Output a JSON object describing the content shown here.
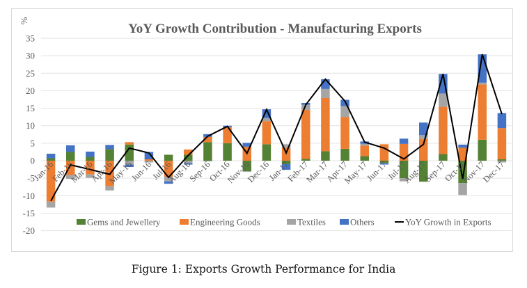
{
  "caption": "Figure 1: Exports Growth Performance for India",
  "chart_data": {
    "type": "bar",
    "subtype": "stacked bar with line overlay",
    "title": "YoY Growth Contribution - Manufacturing Exports",
    "ylabel": "%",
    "xlabel": "",
    "ylim": [
      -20,
      35
    ],
    "yticks": [
      -20,
      -15,
      -10,
      -5,
      0,
      5,
      10,
      15,
      20,
      25,
      30,
      35
    ],
    "ytick_labels": [
      "-20",
      "-15",
      "-10",
      "-5",
      "0",
      "5",
      "10",
      "15",
      "20",
      "25",
      "30",
      "35"
    ],
    "grid": true,
    "legend_position": "bottom-inside",
    "categories": [
      "Jan-16",
      "Feb-16",
      "Mar-16",
      "Apr-16",
      "May-16",
      "Jun-16",
      "Jul-16",
      "Aug-16",
      "Sep-16",
      "Oct-16",
      "Nov-16",
      "Dec-16",
      "Jan-17",
      "Feb-17",
      "Mar-17",
      "Apr-17",
      "May-17",
      "Jun-17",
      "Jul-17",
      "Aug-17",
      "Sep-17",
      "Oct-17",
      "Nov-17",
      "Dec-17"
    ],
    "series": [
      {
        "name": "Gems and Jewellery",
        "type": "bar",
        "color": "#548235",
        "values": [
          0.7,
          2.5,
          1.1,
          3.3,
          4.6,
          0.0,
          1.7,
          1.7,
          5.3,
          5.0,
          -3.0,
          4.7,
          -1.0,
          0.5,
          2.7,
          3.4,
          1.3,
          -0.6,
          -5.0,
          -6.0,
          1.9,
          -6.4,
          6.0,
          0.4
        ]
      },
      {
        "name": "Engineering Goods",
        "type": "bar",
        "color": "#ED7D31",
        "values": [
          -11.7,
          -4.1,
          -3.9,
          -7.3,
          0.7,
          0.4,
          -4.6,
          1.5,
          1.5,
          4.6,
          4.0,
          6.6,
          3.7,
          14.0,
          15.2,
          9.1,
          3.0,
          4.7,
          4.8,
          6.2,
          13.5,
          3.7,
          15.8,
          8.9
        ]
      },
      {
        "name": "Textiles",
        "type": "bar",
        "color": "#A5A5A5",
        "values": [
          -1.7,
          -1.1,
          -1.0,
          -1.2,
          -1.1,
          -0.5,
          -1.3,
          -0.7,
          -0.2,
          0.0,
          -0.2,
          0.9,
          1.0,
          1.5,
          2.6,
          3.1,
          0.5,
          -0.1,
          -0.9,
          1.1,
          3.8,
          -3.4,
          0.5,
          -0.5
        ]
      },
      {
        "name": "Others",
        "type": "bar",
        "color": "#4472C4",
        "values": [
          1.3,
          1.9,
          1.5,
          1.2,
          -0.7,
          2.1,
          -0.7,
          -0.4,
          0.8,
          0.4,
          1.1,
          2.5,
          -1.6,
          0.5,
          2.8,
          1.8,
          0.7,
          -0.4,
          1.5,
          3.6,
          5.6,
          0.9,
          8.1,
          4.3
        ]
      },
      {
        "name": "YoY Growth in Exports",
        "type": "line",
        "color": "#000000",
        "values": [
          -11.5,
          -1.2,
          -2.5,
          -3.9,
          3.6,
          2.2,
          -4.8,
          1.5,
          7.0,
          9.8,
          2.1,
          14.6,
          2.2,
          16.0,
          23.3,
          17.0,
          5.3,
          3.6,
          0.5,
          4.7,
          24.8,
          -5.2,
          30.4,
          13.3
        ]
      }
    ]
  }
}
